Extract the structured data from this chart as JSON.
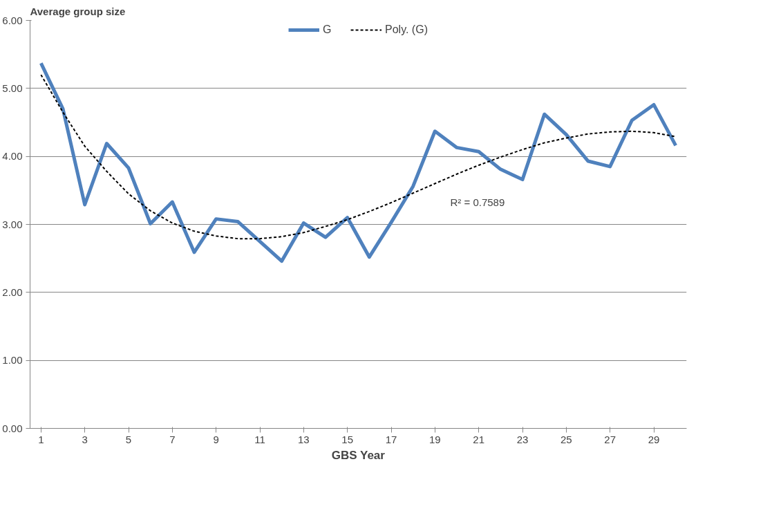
{
  "chart_data": {
    "type": "line",
    "ylabel": "Average group size",
    "xlabel": "GBS Year",
    "x": [
      1,
      2,
      3,
      4,
      5,
      6,
      7,
      8,
      9,
      10,
      11,
      12,
      13,
      14,
      15,
      16,
      17,
      18,
      19,
      20,
      21,
      22,
      23,
      24,
      25,
      26,
      27,
      28,
      29,
      30
    ],
    "series": [
      {
        "name": "G",
        "color": "#4f81bd",
        "line_style": "solid",
        "values": [
          5.37,
          4.7,
          3.29,
          4.19,
          3.83,
          3.01,
          3.33,
          2.59,
          3.08,
          3.04,
          2.75,
          2.46,
          3.02,
          2.81,
          3.1,
          2.52,
          3.03,
          3.56,
          4.37,
          4.13,
          4.07,
          3.81,
          3.66,
          4.62,
          4.32,
          3.93,
          3.85,
          4.53,
          4.76,
          4.16
        ]
      },
      {
        "name": "Poly. (G)",
        "color": "#000000",
        "line_style": "dashed",
        "values": [
          5.2,
          4.65,
          4.15,
          3.78,
          3.45,
          3.2,
          3.02,
          2.9,
          2.83,
          2.79,
          2.79,
          2.82,
          2.88,
          2.97,
          3.07,
          3.19,
          3.32,
          3.46,
          3.6,
          3.74,
          3.87,
          3.99,
          4.1,
          4.2,
          4.27,
          4.33,
          4.36,
          4.37,
          4.35,
          4.29
        ]
      }
    ],
    "annotations": [
      "R² = 0.7589"
    ],
    "xlim": [
      0.5,
      30.5
    ],
    "xticks": [
      1,
      3,
      5,
      7,
      9,
      11,
      13,
      15,
      17,
      19,
      21,
      23,
      25,
      27,
      29
    ],
    "ylim": [
      0,
      6
    ],
    "yticks": [
      {
        "value": 0,
        "label": "0.00"
      },
      {
        "value": 1,
        "label": "1.00"
      },
      {
        "value": 2,
        "label": "2.00"
      },
      {
        "value": 3,
        "label": "3.00"
      },
      {
        "value": 4,
        "label": "4.00"
      },
      {
        "value": 5,
        "label": "5.00"
      },
      {
        "value": 6,
        "label": "6.00"
      }
    ],
    "grid": "y",
    "legend": "top",
    "marker": "none"
  }
}
